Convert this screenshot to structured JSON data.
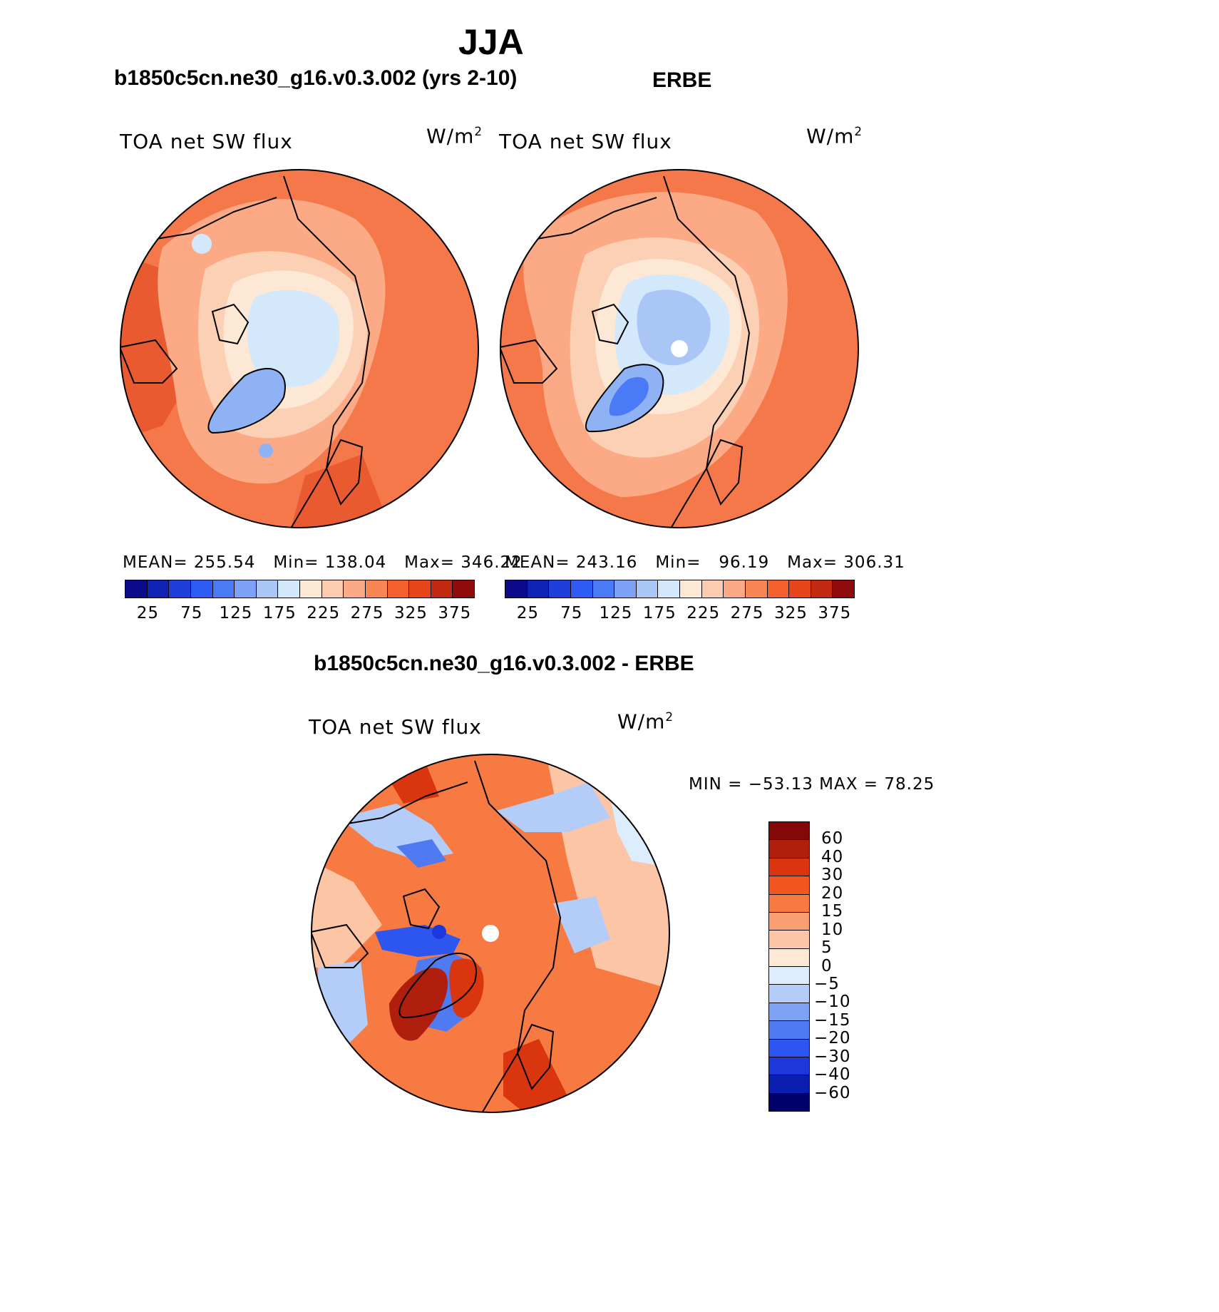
{
  "header": {
    "season": "JJA"
  },
  "panels": [
    {
      "title": "b1850c5cn.ne30_g16.v0.3.002 (yrs 2-10)",
      "variable": "TOA net SW flux",
      "units_base": "W/m",
      "units_exp": "2",
      "stats": {
        "mean_label": "MEAN=",
        "mean": "255.54",
        "min_label": "Min=",
        "min": "138.04",
        "max_label": "Max=",
        "max": "346.22"
      }
    },
    {
      "title": "ERBE",
      "variable": "TOA net SW flux",
      "units_base": "W/m",
      "units_exp": "2",
      "stats": {
        "mean_label": "MEAN=",
        "mean": "243.16",
        "min_label": "Min=",
        "min": "96.19",
        "max_label": "Max=",
        "max": "306.31"
      }
    }
  ],
  "abs_colorbar": {
    "colors": [
      "#0a0a8a",
      "#0f23b5",
      "#1e3fd9",
      "#2f5bf5",
      "#4a7af5",
      "#7da2f5",
      "#a9c6f7",
      "#d4e8fb",
      "#fde8d6",
      "#fccbb0",
      "#fbaa85",
      "#f88655",
      "#f5612e",
      "#e8451c",
      "#c22a12",
      "#8e0c0c"
    ],
    "ticks": [
      "25",
      "75",
      "125",
      "175",
      "225",
      "275",
      "325",
      "375"
    ]
  },
  "diff": {
    "title": "b1850c5cn.ne30_g16.v0.3.002 - ERBE",
    "variable": "TOA net SW flux",
    "units_base": "W/m",
    "units_exp": "2",
    "minmax": "MIN = −53.13 MAX =  78.25",
    "colorbar_colors": [
      "#00006a",
      "#0a1fb0",
      "#1c38dc",
      "#2d55f0",
      "#4f7af2",
      "#7ea3f4",
      "#b3cdf8",
      "#dceefd",
      "#fde8d6",
      "#fcc5a6",
      "#fa9f72",
      "#f77a43",
      "#f4561f",
      "#d9360f",
      "#b01e0d",
      "#850808"
    ],
    "colorbar_labels": [
      "-60",
      "-40",
      "-30",
      "-20",
      "-15",
      "-10",
      "-5",
      "0",
      "5",
      "10",
      "15",
      "20",
      "30",
      "40",
      "60"
    ]
  },
  "palette": {
    "base": "#f4784a",
    "deep": "#ea5a30",
    "mid": "#fbaa85",
    "light": "#fcd0b4",
    "cream": "#fde8d6",
    "pale_blue": "#d4e8fb",
    "blue": "#8fb2f5",
    "deep_blue": "#4a7af5",
    "dark_red": "#c22a12"
  }
}
